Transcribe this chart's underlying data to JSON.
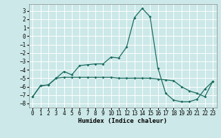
{
  "title": "",
  "xlabel": "Humidex (Indice chaleur)",
  "ylabel": "",
  "background_color": "#cce8e8",
  "grid_color": "#ffffff",
  "line_color": "#1a6b5e",
  "xlim": [
    -0.5,
    23.5
  ],
  "ylim": [
    -8.5,
    3.8
  ],
  "yticks": [
    -8,
    -7,
    -6,
    -5,
    -4,
    -3,
    -2,
    -1,
    0,
    1,
    2,
    3
  ],
  "xticks": [
    0,
    1,
    2,
    3,
    4,
    5,
    6,
    7,
    8,
    9,
    10,
    11,
    12,
    13,
    14,
    15,
    16,
    17,
    18,
    19,
    20,
    21,
    22,
    23
  ],
  "series1_x": [
    0,
    1,
    2,
    3,
    4,
    5,
    6,
    7,
    8,
    9,
    10,
    11,
    12,
    13,
    14,
    15,
    16,
    17,
    18,
    19,
    20,
    21,
    22,
    23
  ],
  "series1_y": [
    -7.2,
    -5.9,
    -5.8,
    -5.0,
    -4.2,
    -4.6,
    -3.5,
    -3.4,
    -3.3,
    -3.3,
    -2.5,
    -2.6,
    -1.3,
    2.2,
    3.3,
    2.3,
    -3.8,
    -6.8,
    -7.6,
    -7.8,
    -7.8,
    -7.5,
    -6.3,
    -5.4
  ],
  "series2_x": [
    0,
    1,
    2,
    3,
    4,
    5,
    6,
    7,
    8,
    9,
    10,
    11,
    12,
    13,
    14,
    15,
    16,
    17,
    18,
    19,
    20,
    21,
    22,
    23
  ],
  "series2_y": [
    -7.2,
    -5.9,
    -5.8,
    -5.0,
    -4.9,
    -4.9,
    -4.9,
    -4.9,
    -4.9,
    -4.9,
    -4.9,
    -5.0,
    -5.0,
    -5.0,
    -5.0,
    -5.0,
    -5.1,
    -5.2,
    -5.3,
    -6.0,
    -6.5,
    -6.8,
    -7.2,
    -5.4
  ],
  "tick_fontsize": 5.5,
  "xlabel_fontsize": 6.5
}
